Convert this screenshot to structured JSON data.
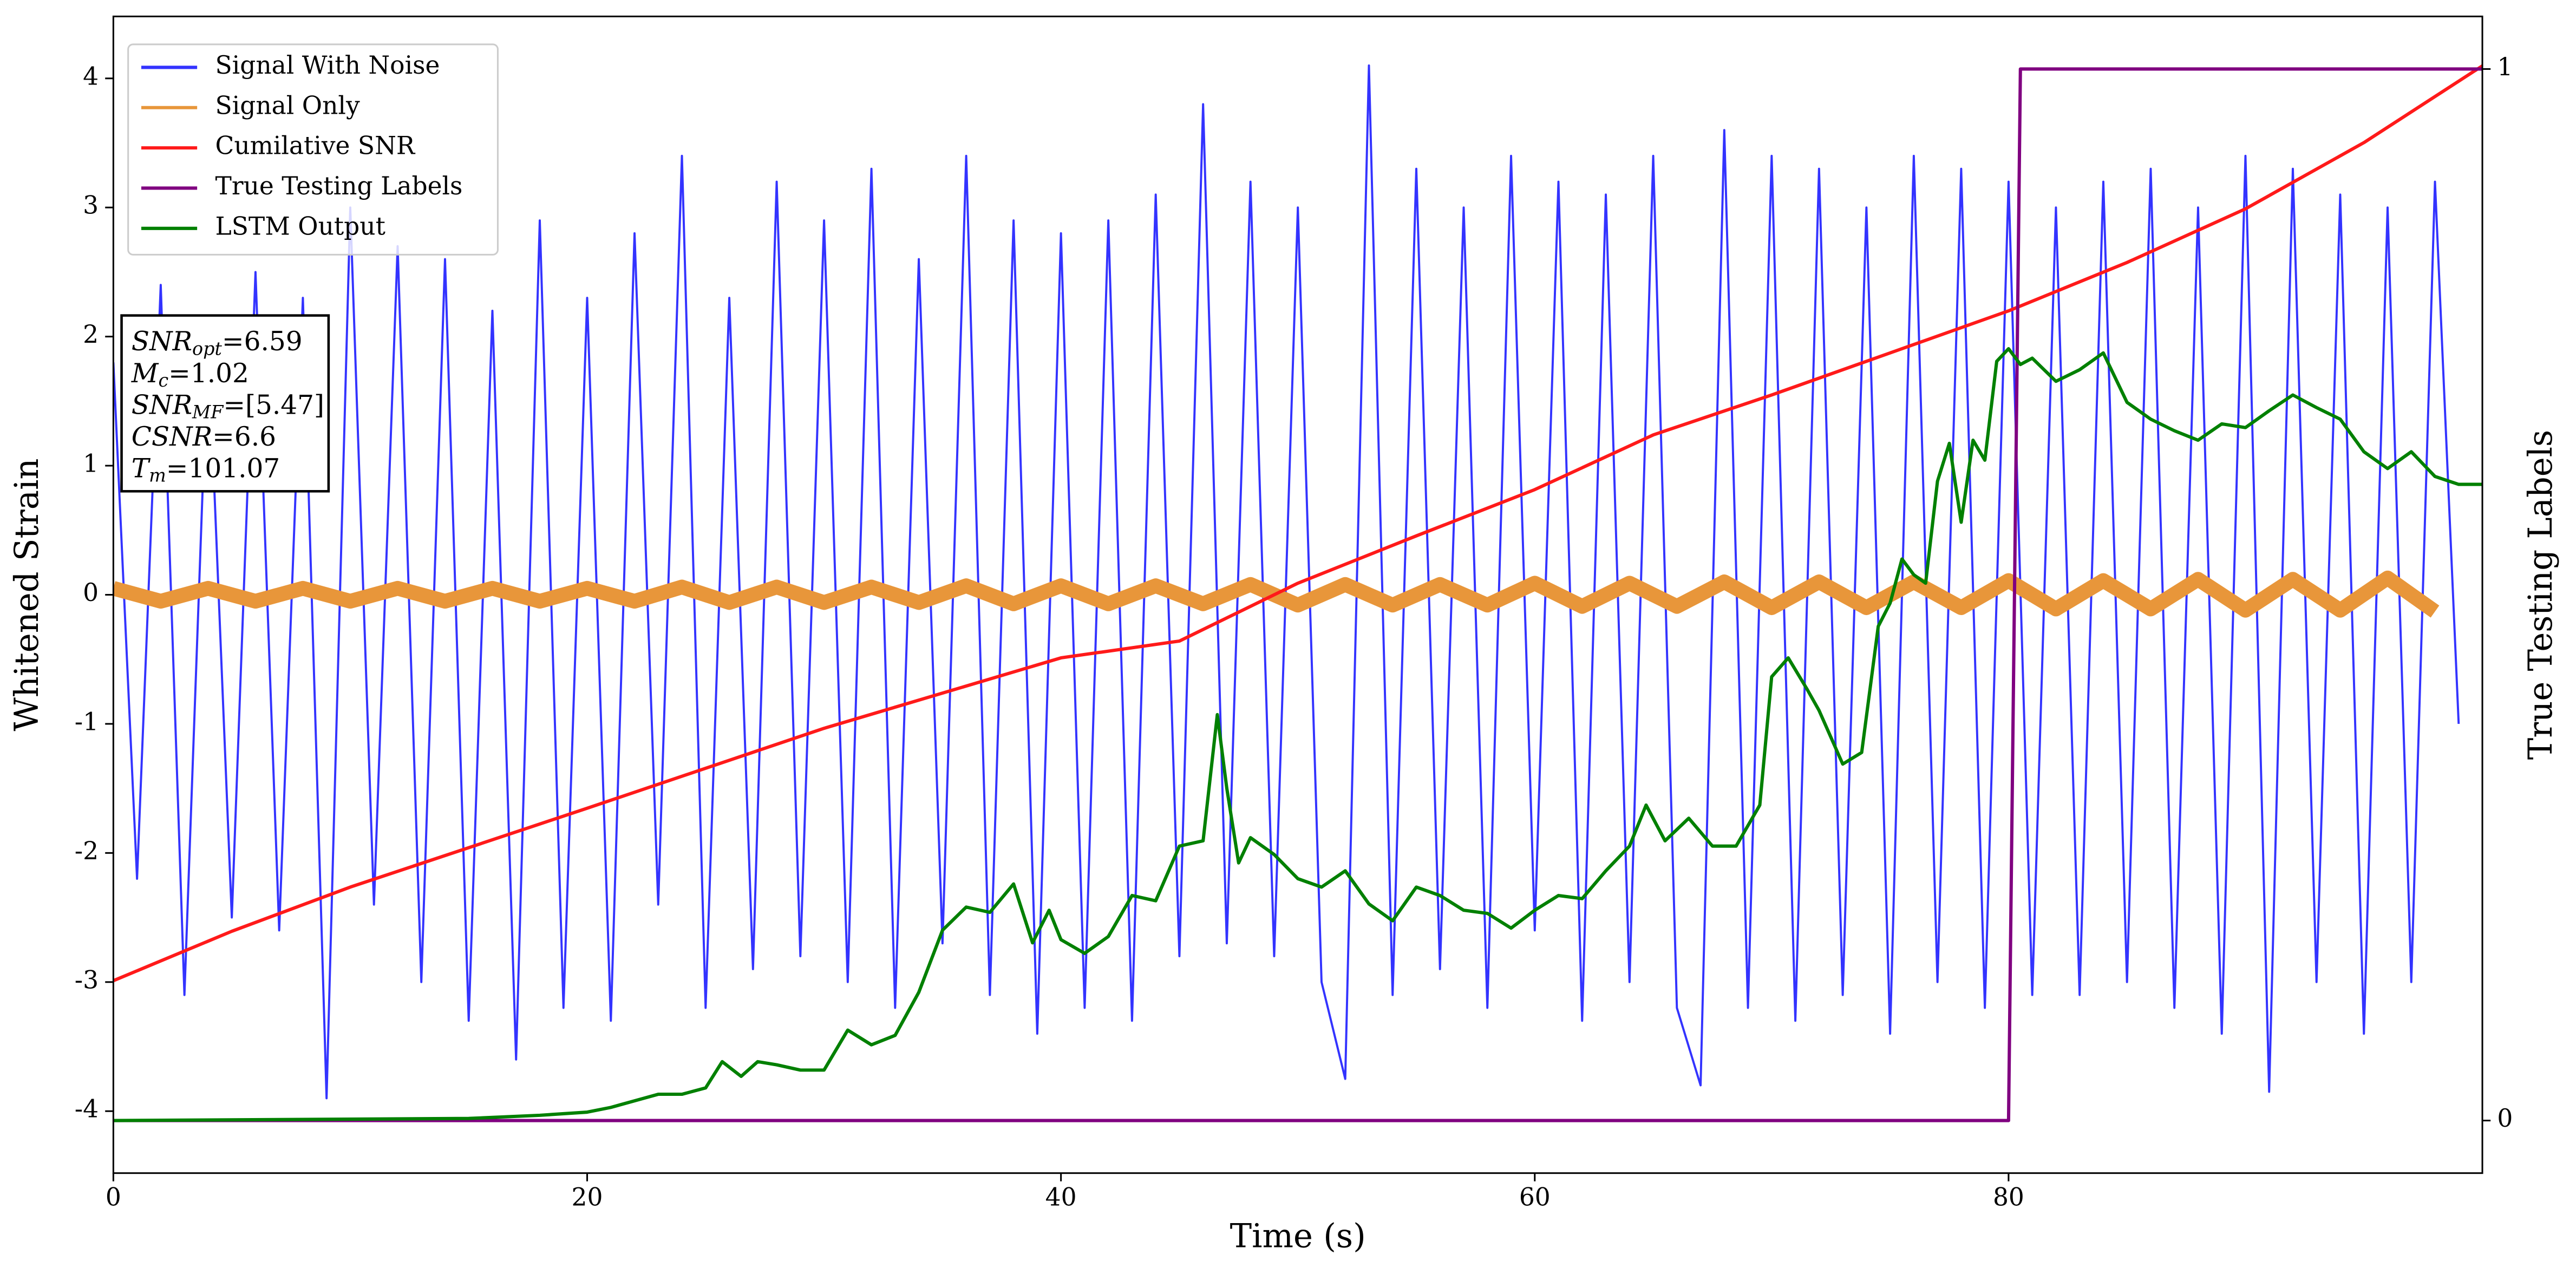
{
  "chart_data": {
    "type": "line",
    "xlabel": "Time (s)",
    "ylabel": "Whitened Strain",
    "y2label": "True Testing Labels",
    "xlim": [
      0,
      100
    ],
    "ylim": [
      -4.48,
      4.48
    ],
    "y2lim": [
      -0.05,
      1.05
    ],
    "xticks": [
      0,
      20,
      40,
      60,
      80
    ],
    "yticks": [
      -4,
      -3,
      -2,
      -1,
      0,
      1,
      2,
      3,
      4
    ],
    "y2ticks": [
      0,
      1
    ],
    "grid": false,
    "legend": "upper left",
    "annotation": [
      {
        "base": "SNR",
        "sub": "opt",
        "value": "=6.59"
      },
      {
        "base": "M",
        "sub": "c",
        "value": "=1.02"
      },
      {
        "base": "SNR",
        "sub": "MF",
        "value": "=[5.47]"
      },
      {
        "base": "CSNR",
        "value": "=6.6"
      },
      {
        "base": "T",
        "sub": "m",
        "value": "=101.07"
      }
    ],
    "series": [
      {
        "name": "Signal With Noise",
        "color": "#3333ff",
        "width": 1.3,
        "x": [
          0,
          1,
          2,
          3,
          4,
          5,
          6,
          7,
          8,
          9,
          10,
          11,
          12,
          13,
          14,
          15,
          16,
          17,
          18,
          19,
          20,
          21,
          22,
          23,
          24,
          25,
          26,
          27,
          28,
          29,
          30,
          31,
          32,
          33,
          34,
          35,
          36,
          37,
          38,
          39,
          40,
          41,
          42,
          43,
          44,
          45,
          46,
          47,
          48,
          49,
          50,
          51,
          52,
          53,
          54,
          55,
          56,
          57,
          58,
          59,
          60,
          61,
          62,
          63,
          64,
          65,
          66,
          67,
          68,
          69,
          70,
          71,
          72,
          73,
          74,
          75,
          76,
          77,
          78,
          79,
          80,
          81,
          82,
          83,
          84,
          85,
          86,
          87,
          88,
          89,
          90,
          91,
          92,
          93,
          94,
          95,
          96,
          97,
          98,
          99
        ],
        "values": [
          1.8,
          -2.2,
          2.4,
          -3.1,
          2.0,
          -2.5,
          2.5,
          -2.6,
          2.3,
          -3.9,
          3.0,
          -2.4,
          2.7,
          -3.0,
          2.6,
          -3.3,
          2.2,
          -3.6,
          2.9,
          -3.2,
          2.3,
          -3.3,
          2.8,
          -2.4,
          3.4,
          -3.2,
          2.3,
          -2.9,
          3.2,
          -2.8,
          2.9,
          -3.0,
          3.3,
          -3.2,
          2.6,
          -2.7,
          3.4,
          -3.1,
          2.9,
          -3.4,
          2.8,
          -3.2,
          2.9,
          -3.3,
          3.1,
          -2.8,
          3.8,
          -2.7,
          3.2,
          -2.8,
          3.0,
          -3.0,
          -3.75,
          4.1,
          -3.1,
          3.3,
          -2.9,
          3.0,
          -3.2,
          3.4,
          -2.6,
          3.2,
          -3.3,
          3.1,
          -3.0,
          3.4,
          -3.2,
          -3.8,
          3.6,
          -3.2,
          3.4,
          -3.3,
          3.3,
          -3.1,
          3.0,
          -3.4,
          3.4,
          -3.0,
          3.3,
          -3.2,
          3.2,
          -3.1,
          3.0,
          -3.1,
          3.2,
          -3.0,
          3.3,
          -3.2,
          3.0,
          -3.4,
          3.4,
          -3.85,
          3.3,
          -3.0,
          3.1,
          -3.4,
          3.0,
          -3.0,
          3.2,
          -1.0
        ]
      },
      {
        "name": "Signal Only",
        "color": "#e8963a",
        "width": 9,
        "x": [
          0,
          2,
          4,
          6,
          8,
          10,
          12,
          14,
          16,
          18,
          20,
          22,
          24,
          26,
          28,
          30,
          32,
          34,
          36,
          38,
          40,
          42,
          44,
          46,
          48,
          50,
          52,
          54,
          56,
          58,
          60,
          62,
          64,
          66,
          68,
          70,
          72,
          74,
          76,
          78,
          80,
          82,
          84,
          86,
          88,
          90,
          92,
          94,
          96,
          98
        ],
        "values": [
          0.05,
          -0.05,
          0.05,
          -0.05,
          0.05,
          -0.05,
          0.05,
          -0.05,
          0.05,
          -0.05,
          0.05,
          -0.05,
          0.06,
          -0.06,
          0.06,
          -0.06,
          0.06,
          -0.06,
          0.07,
          -0.07,
          0.07,
          -0.07,
          0.07,
          -0.07,
          0.08,
          -0.08,
          0.08,
          -0.08,
          0.08,
          -0.08,
          0.09,
          -0.09,
          0.09,
          -0.09,
          0.1,
          -0.1,
          0.1,
          -0.1,
          0.1,
          -0.1,
          0.11,
          -0.11,
          0.11,
          -0.11,
          0.12,
          -0.12,
          0.12,
          -0.12,
          0.13,
          -0.13
        ]
      },
      {
        "name": "Cumilative SNR",
        "color": "#ff1a1a",
        "width": 2,
        "axis": "y2",
        "x": [
          0,
          5,
          10,
          20,
          30,
          40,
          45,
          50,
          55,
          60,
          65,
          70,
          75,
          80,
          85,
          90,
          95,
          100
        ],
        "values": [
          0.133,
          0.18,
          0.222,
          0.297,
          0.373,
          0.44,
          0.456,
          0.511,
          0.556,
          0.6,
          0.652,
          0.69,
          0.73,
          0.77,
          0.816,
          0.867,
          0.93,
          1.003
        ]
      },
      {
        "name": "True Testing Labels",
        "color": "#800080",
        "width": 2,
        "axis": "y2",
        "x": [
          0,
          80,
          80.5,
          100
        ],
        "values": [
          0,
          0,
          1,
          1
        ]
      },
      {
        "name": "LSTM Output",
        "color": "#008000",
        "width": 2,
        "axis": "y2",
        "x": [
          0,
          15,
          18,
          20,
          21,
          23,
          24,
          25,
          25.7,
          26.5,
          27.2,
          28,
          29,
          30,
          31,
          32,
          33,
          34,
          35,
          36,
          37,
          38,
          38.8,
          39.5,
          40,
          41,
          42,
          43,
          44,
          45,
          46,
          46.6,
          47,
          47.5,
          48,
          49,
          50,
          51,
          52,
          53,
          54,
          55,
          56,
          57,
          58,
          59,
          60,
          61,
          62,
          63,
          64,
          64.7,
          65.5,
          66.5,
          67.5,
          68.5,
          69.5,
          70,
          70.7,
          71.5,
          72,
          73,
          73.8,
          74.5,
          75,
          75.5,
          76,
          76.5,
          77,
          77.5,
          78,
          78.5,
          79,
          79.5,
          80,
          80.5,
          81,
          82,
          83,
          84,
          85,
          86,
          87,
          88,
          89,
          90,
          91,
          92,
          93,
          94,
          95,
          96,
          97,
          98,
          99,
          100
        ],
        "values": [
          0,
          0.002,
          0.005,
          0.008,
          0.0125,
          0.025,
          0.025,
          0.031,
          0.056,
          0.042,
          0.056,
          0.053,
          0.048,
          0.048,
          0.086,
          0.072,
          0.081,
          0.122,
          0.181,
          0.203,
          0.198,
          0.225,
          0.169,
          0.2,
          0.172,
          0.159,
          0.175,
          0.214,
          0.209,
          0.261,
          0.266,
          0.386,
          0.316,
          0.245,
          0.269,
          0.253,
          0.23,
          0.222,
          0.2375,
          0.206,
          0.19,
          0.222,
          0.214,
          0.2,
          0.197,
          0.183,
          0.2,
          0.214,
          0.211,
          0.2375,
          0.261,
          0.3,
          0.266,
          0.2875,
          0.261,
          0.261,
          0.3,
          0.422,
          0.44,
          0.41,
          0.39,
          0.339,
          0.35,
          0.47,
          0.492,
          0.534,
          0.519,
          0.511,
          0.608,
          0.644,
          0.569,
          0.647,
          0.628,
          0.722,
          0.734,
          0.719,
          0.725,
          0.703,
          0.714,
          0.73,
          0.683,
          0.667,
          0.656,
          0.647,
          0.6625,
          0.659,
          0.675,
          0.69,
          0.678,
          0.667,
          0.636,
          0.62,
          0.636,
          0.6125,
          0.605,
          0.605
        ]
      }
    ]
  }
}
